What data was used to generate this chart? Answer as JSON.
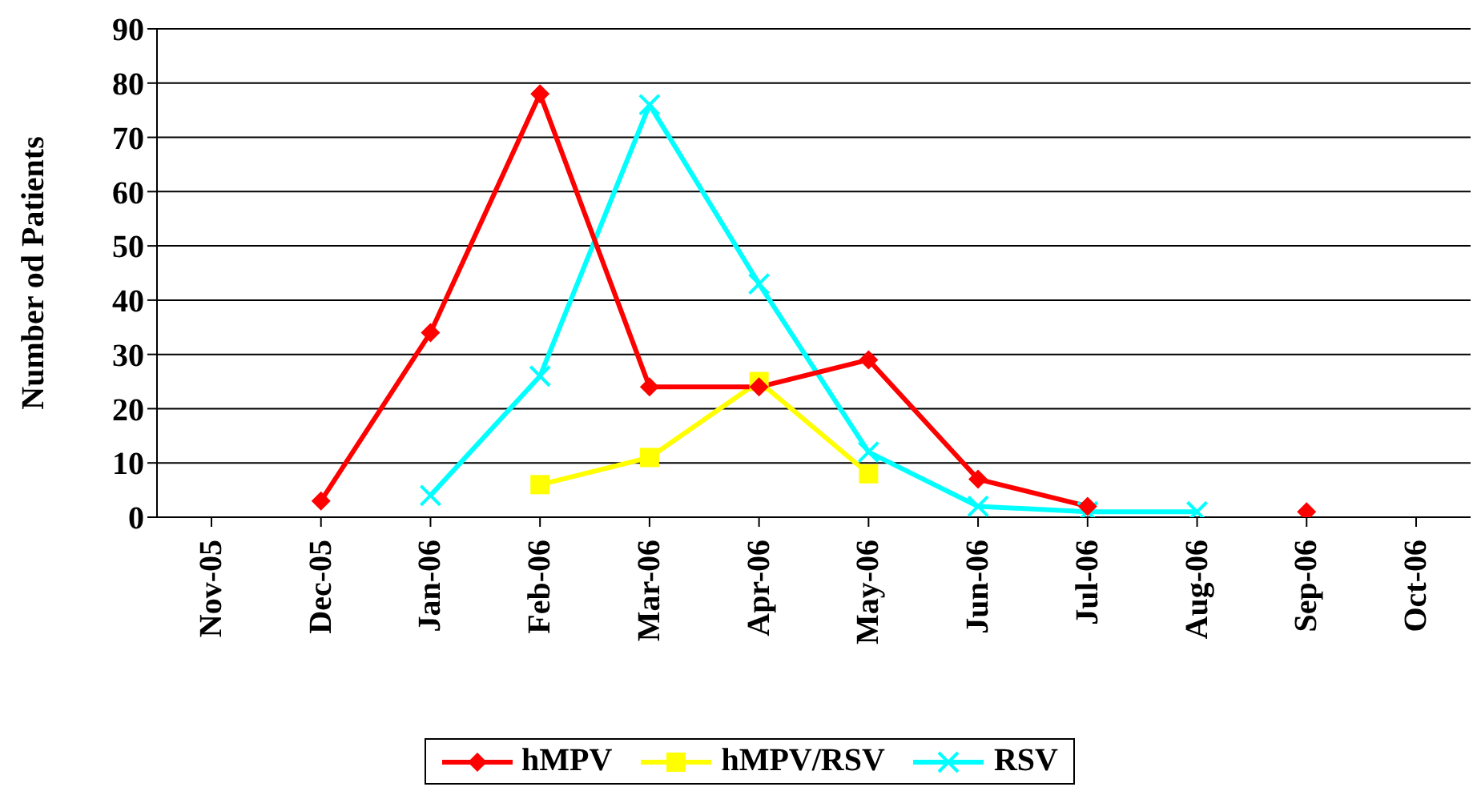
{
  "chart_data": {
    "type": "line",
    "ylabel": "Number od Patients",
    "categories": [
      "Nov-05",
      "Dec-05",
      "Jan-06",
      "Feb-06",
      "Mar-06",
      "Apr-06",
      "May-06",
      "Jun-06",
      "Jul-06",
      "Aug-06",
      "Sep-06",
      "Oct-06"
    ],
    "series": [
      {
        "name": "hMPV",
        "color": "#ff0000",
        "marker": "diamond",
        "values": [
          null,
          3,
          34,
          78,
          24,
          24,
          29,
          7,
          2,
          null,
          1,
          null
        ]
      },
      {
        "name": "hMPV/RSV",
        "color": "#ffff00",
        "marker": "square",
        "values": [
          null,
          null,
          null,
          6,
          11,
          25,
          8,
          null,
          null,
          null,
          null,
          null
        ]
      },
      {
        "name": "RSV",
        "color": "#00ffff",
        "marker": "cross",
        "values": [
          null,
          null,
          4,
          26,
          76,
          43,
          12,
          2,
          1,
          1,
          null,
          null
        ]
      }
    ],
    "ylim": [
      0,
      90
    ],
    "yticks": [
      0,
      10,
      20,
      30,
      40,
      50,
      60,
      70,
      80,
      90
    ],
    "grid": "y",
    "legend": "bottom"
  }
}
